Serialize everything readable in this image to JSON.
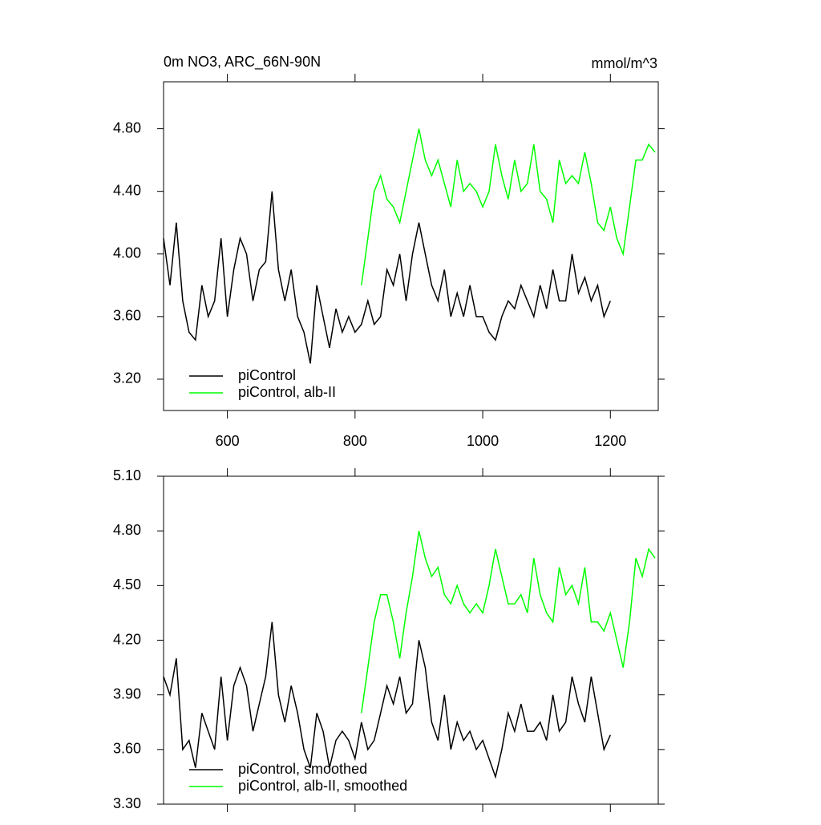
{
  "chart_data": [
    {
      "type": "line",
      "title": "0m NO3, ARC_66N-90N",
      "unit_label": "mmol/m^3",
      "xlim": [
        500,
        1275
      ],
      "ylim": [
        3.0,
        5.1
      ],
      "xticks": [
        600,
        800,
        1000,
        1200
      ],
      "xtick_labels": true,
      "yticks": [
        {
          "value": 3.2,
          "label": "3.20"
        },
        {
          "value": 3.6,
          "label": "3.60"
        },
        {
          "value": 4.0,
          "label": "4.00"
        },
        {
          "value": 4.4,
          "label": "4.40"
        },
        {
          "value": 4.8,
          "label": "4.80"
        }
      ],
      "legend": "lower left",
      "series": [
        {
          "name": "piControl",
          "color": "#000000",
          "x": [
            500,
            510,
            520,
            530,
            540,
            550,
            560,
            570,
            580,
            590,
            600,
            610,
            620,
            630,
            640,
            650,
            660,
            670,
            680,
            690,
            700,
            710,
            720,
            730,
            740,
            750,
            760,
            770,
            780,
            790,
            800,
            810,
            820,
            830,
            840,
            850,
            860,
            870,
            880,
            890,
            900,
            910,
            920,
            930,
            940,
            950,
            960,
            970,
            980,
            990,
            1000,
            1010,
            1020,
            1030,
            1040,
            1050,
            1060,
            1070,
            1080,
            1090,
            1100,
            1110,
            1120,
            1130,
            1140,
            1150,
            1160,
            1170,
            1180,
            1190,
            1200
          ],
          "values": [
            4.1,
            3.8,
            4.2,
            3.7,
            3.5,
            3.45,
            3.8,
            3.6,
            3.7,
            4.1,
            3.6,
            3.9,
            4.1,
            4.0,
            3.7,
            3.9,
            3.95,
            4.4,
            3.9,
            3.7,
            3.9,
            3.6,
            3.5,
            3.3,
            3.8,
            3.6,
            3.4,
            3.65,
            3.5,
            3.6,
            3.5,
            3.55,
            3.7,
            3.55,
            3.6,
            3.9,
            3.8,
            4.0,
            3.7,
            4.0,
            4.2,
            4.0,
            3.8,
            3.7,
            3.9,
            3.6,
            3.75,
            3.6,
            3.8,
            3.6,
            3.6,
            3.5,
            3.45,
            3.6,
            3.7,
            3.65,
            3.8,
            3.7,
            3.6,
            3.8,
            3.65,
            3.9,
            3.7,
            3.7,
            4.0,
            3.75,
            3.85,
            3.7,
            3.8,
            3.6,
            3.7
          ]
        },
        {
          "name": "piControl, alb-II",
          "color": "#00ff00",
          "x": [
            810,
            820,
            830,
            840,
            850,
            860,
            870,
            880,
            890,
            900,
            910,
            920,
            930,
            940,
            950,
            960,
            970,
            980,
            990,
            1000,
            1010,
            1020,
            1030,
            1040,
            1050,
            1060,
            1070,
            1080,
            1090,
            1100,
            1110,
            1120,
            1130,
            1140,
            1150,
            1160,
            1170,
            1180,
            1190,
            1200,
            1210,
            1220,
            1230,
            1240,
            1250,
            1260,
            1270
          ],
          "values": [
            3.8,
            4.1,
            4.4,
            4.5,
            4.35,
            4.3,
            4.2,
            4.4,
            4.6,
            4.8,
            4.6,
            4.5,
            4.6,
            4.45,
            4.3,
            4.6,
            4.4,
            4.45,
            4.4,
            4.3,
            4.4,
            4.7,
            4.5,
            4.35,
            4.6,
            4.4,
            4.45,
            4.7,
            4.4,
            4.35,
            4.2,
            4.6,
            4.45,
            4.5,
            4.45,
            4.65,
            4.45,
            4.2,
            4.15,
            4.3,
            4.1,
            4.0,
            4.3,
            4.6,
            4.6,
            4.7,
            4.65
          ]
        }
      ]
    },
    {
      "type": "line",
      "xlim": [
        500,
        1275
      ],
      "ylim": [
        3.3,
        5.1
      ],
      "xticks": [
        600,
        800,
        1000,
        1200
      ],
      "xtick_labels": false,
      "yticks": [
        {
          "value": 3.3,
          "label": "3.30"
        },
        {
          "value": 3.6,
          "label": "3.60"
        },
        {
          "value": 3.9,
          "label": "3.90"
        },
        {
          "value": 4.2,
          "label": "4.20"
        },
        {
          "value": 4.5,
          "label": "4.50"
        },
        {
          "value": 4.8,
          "label": "4.80"
        },
        {
          "value": 5.1,
          "label": "5.10"
        }
      ],
      "legend": "lower left",
      "series": [
        {
          "name": "piControl, smoothed",
          "color": "#000000",
          "x": [
            500,
            510,
            520,
            530,
            540,
            550,
            560,
            570,
            580,
            590,
            600,
            610,
            620,
            630,
            640,
            650,
            660,
            670,
            680,
            690,
            700,
            710,
            720,
            730,
            740,
            750,
            760,
            770,
            780,
            790,
            800,
            810,
            820,
            830,
            840,
            850,
            860,
            870,
            880,
            890,
            900,
            910,
            920,
            930,
            940,
            950,
            960,
            970,
            980,
            990,
            1000,
            1010,
            1020,
            1030,
            1040,
            1050,
            1060,
            1070,
            1080,
            1090,
            1100,
            1110,
            1120,
            1130,
            1140,
            1150,
            1160,
            1170,
            1180,
            1190,
            1200
          ],
          "values": [
            4.0,
            3.9,
            4.1,
            3.6,
            3.65,
            3.5,
            3.8,
            3.7,
            3.6,
            4.0,
            3.65,
            3.95,
            4.05,
            3.95,
            3.7,
            3.85,
            4.0,
            4.3,
            3.9,
            3.75,
            3.95,
            3.8,
            3.6,
            3.5,
            3.8,
            3.7,
            3.5,
            3.65,
            3.7,
            3.65,
            3.55,
            3.75,
            3.6,
            3.65,
            3.8,
            3.95,
            3.85,
            4.0,
            3.8,
            3.85,
            4.2,
            4.05,
            3.75,
            3.65,
            3.9,
            3.6,
            3.75,
            3.65,
            3.7,
            3.6,
            3.65,
            3.55,
            3.45,
            3.6,
            3.8,
            3.7,
            3.85,
            3.7,
            3.7,
            3.75,
            3.65,
            3.9,
            3.7,
            3.75,
            4.0,
            3.85,
            3.75,
            4.0,
            3.8,
            3.6,
            3.68
          ]
        },
        {
          "name": "piControl, alb-II, smoothed",
          "color": "#00ff00",
          "x": [
            810,
            820,
            830,
            840,
            850,
            860,
            870,
            880,
            890,
            900,
            910,
            920,
            930,
            940,
            950,
            960,
            970,
            980,
            990,
            1000,
            1010,
            1020,
            1030,
            1040,
            1050,
            1060,
            1070,
            1080,
            1090,
            1100,
            1110,
            1120,
            1130,
            1140,
            1150,
            1160,
            1170,
            1180,
            1190,
            1200,
            1210,
            1220,
            1230,
            1240,
            1250,
            1260,
            1270
          ],
          "values": [
            3.8,
            4.05,
            4.3,
            4.45,
            4.45,
            4.3,
            4.1,
            4.35,
            4.55,
            4.8,
            4.65,
            4.55,
            4.6,
            4.45,
            4.4,
            4.5,
            4.4,
            4.35,
            4.4,
            4.35,
            4.5,
            4.7,
            4.55,
            4.4,
            4.4,
            4.45,
            4.35,
            4.65,
            4.45,
            4.35,
            4.3,
            4.6,
            4.45,
            4.5,
            4.4,
            4.6,
            4.3,
            4.3,
            4.25,
            4.35,
            4.2,
            4.05,
            4.3,
            4.65,
            4.55,
            4.7,
            4.65
          ]
        }
      ]
    }
  ]
}
